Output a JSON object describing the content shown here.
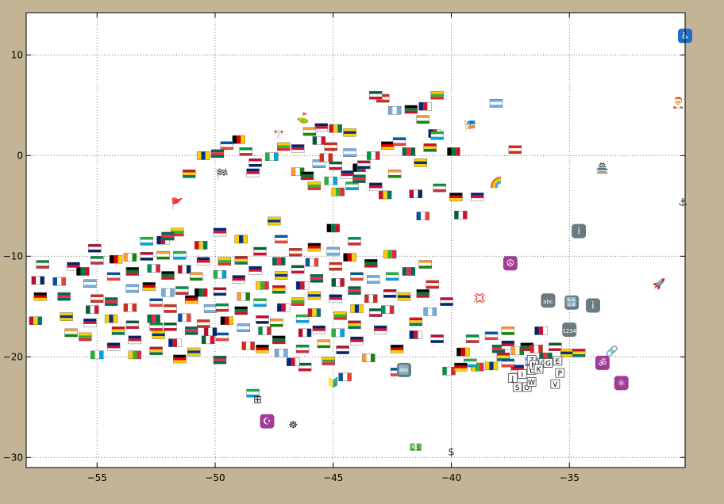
{
  "chart_data": {
    "type": "scatter",
    "title": "",
    "xlabel": "",
    "ylabel": "",
    "xlim": [
      -58,
      -30.1
    ],
    "ylim": [
      -31,
      14.2
    ],
    "xticks": [
      -55,
      -50,
      -45,
      -40,
      -35
    ],
    "yticks": [
      -30,
      -20,
      -10,
      0,
      10
    ],
    "xtick_labels": [
      "−55",
      "−50",
      "−45",
      "−40",
      "−35"
    ],
    "ytick_labels": [
      "−30",
      "−20",
      "−10",
      "0",
      "10"
    ],
    "grid": true,
    "legend": "none",
    "colors": {
      "background": "#c4b496",
      "plot_area": "#ffffff",
      "grid": "#555555",
      "keycap": "#6b7a80",
      "purple_symbol": "#a03c96",
      "blue_symbol": "#1e6fc8"
    },
    "flags": {
      "palettes": [
        [
          "#bf0a30",
          "#ffffff",
          "#002868"
        ],
        [
          "#009246",
          "#ffffff",
          "#ce2b37"
        ],
        [
          "#000000",
          "#dd0000",
          "#ffce00"
        ],
        [
          "#0055a4",
          "#ffffff",
          "#ef4135"
        ],
        [
          "#006a4e",
          "#f42a41",
          "#006a4e"
        ],
        [
          "#ffcd00",
          "#003580",
          "#ffcd00"
        ],
        [
          "#ce1126",
          "#fcd116",
          "#007a5e"
        ],
        [
          "#012169",
          "#c8102e",
          "#ffffff"
        ],
        [
          "#ff9933",
          "#ffffff",
          "#138808"
        ],
        [
          "#000000",
          "#007a3d",
          "#ce1126"
        ],
        [
          "#74acdf",
          "#ffffff",
          "#74acdf"
        ],
        [
          "#d52b1e",
          "#ffffff",
          "#d52b1e"
        ],
        [
          "#006233",
          "#ffffff",
          "#d21034"
        ],
        [
          "#00247d",
          "#cf142b",
          "#ffffff"
        ],
        [
          "#fecb00",
          "#34b233",
          "#ea2839"
        ],
        [
          "#1eb53a",
          "#ffffff",
          "#00a3dd"
        ]
      ],
      "points": [
        [
          -57.5,
          -12.4
        ],
        [
          -57.3,
          -10.8
        ],
        [
          -57.4,
          -14.0
        ],
        [
          -56.6,
          -12.5
        ],
        [
          -56.4,
          -14.0
        ],
        [
          -56.3,
          -16.0
        ],
        [
          -57.6,
          -16.4
        ],
        [
          -56.0,
          -11.0
        ],
        [
          -56.1,
          -17.6
        ],
        [
          -55.6,
          -11.5
        ],
        [
          -55.3,
          -12.7
        ],
        [
          -55.0,
          -14.2
        ],
        [
          -55.2,
          -15.3
        ],
        [
          -55.3,
          -16.6
        ],
        [
          -55.5,
          -18.0
        ],
        [
          -55.0,
          -19.8
        ],
        [
          -55.1,
          -9.2
        ],
        [
          -55.0,
          -10.4
        ],
        [
          -54.2,
          -10.3
        ],
        [
          -54.3,
          -12.0
        ],
        [
          -54.4,
          -14.5
        ],
        [
          -54.4,
          -16.2
        ],
        [
          -54.1,
          -17.4
        ],
        [
          -54.3,
          -19.0
        ],
        [
          -53.6,
          -10.1
        ],
        [
          -53.5,
          -11.5
        ],
        [
          -53.5,
          -13.2
        ],
        [
          -53.6,
          -15.1
        ],
        [
          -53.5,
          -16.8
        ],
        [
          -53.4,
          -18.3
        ],
        [
          -53.4,
          -19.8
        ],
        [
          -52.9,
          -8.5
        ],
        [
          -52.9,
          -10.0
        ],
        [
          -52.6,
          -11.2
        ],
        [
          -52.8,
          -13.0
        ],
        [
          -52.5,
          -14.6
        ],
        [
          -52.6,
          -16.2
        ],
        [
          -52.4,
          -17.8
        ],
        [
          -52.5,
          -19.4
        ],
        [
          -52.2,
          -8.4
        ],
        [
          -52.2,
          -9.9
        ],
        [
          -52.0,
          -11.9
        ],
        [
          -52.0,
          -13.6
        ],
        [
          -51.9,
          -15.2
        ],
        [
          -51.9,
          -17.0
        ],
        [
          -51.7,
          -18.6
        ],
        [
          -51.6,
          -7.6
        ],
        [
          -51.5,
          -9.9
        ],
        [
          -51.3,
          -11.3
        ],
        [
          -51.4,
          -13.4
        ],
        [
          -51.0,
          -14.3
        ],
        [
          -51.3,
          -16.1
        ],
        [
          -51.0,
          -17.4
        ],
        [
          -50.9,
          -19.5
        ],
        [
          -50.6,
          -8.9
        ],
        [
          -50.5,
          -10.5
        ],
        [
          -50.8,
          -12.0
        ],
        [
          -50.6,
          -13.6
        ],
        [
          -50.2,
          -15.2
        ],
        [
          -50.5,
          -16.7
        ],
        [
          -50.3,
          -18.3
        ],
        [
          -49.8,
          -7.6
        ],
        [
          -49.6,
          -10.5
        ],
        [
          -49.8,
          -11.8
        ],
        [
          -49.8,
          -13.5
        ],
        [
          -49.7,
          -15.1
        ],
        [
          -49.5,
          -16.4
        ],
        [
          -49.7,
          -18.0
        ],
        [
          -49.8,
          -20.3
        ],
        [
          -48.9,
          -8.3
        ],
        [
          -48.9,
          -10.4
        ],
        [
          -49.0,
          -12.3
        ],
        [
          -48.8,
          -14.0
        ],
        [
          -48.9,
          -15.4
        ],
        [
          -48.8,
          -17.1
        ],
        [
          -48.6,
          -18.9
        ],
        [
          -48.1,
          -9.5
        ],
        [
          -48.3,
          -11.4
        ],
        [
          -48.0,
          -12.9
        ],
        [
          -48.1,
          -14.6
        ],
        [
          -48.0,
          -16.3
        ],
        [
          -47.9,
          -17.4
        ],
        [
          -48.0,
          -19.2
        ],
        [
          -47.2,
          -8.3
        ],
        [
          -47.3,
          -10.5
        ],
        [
          -47.2,
          -11.9
        ],
        [
          -47.3,
          -13.3
        ],
        [
          -47.1,
          -15.1
        ],
        [
          -47.4,
          -16.6
        ],
        [
          -47.3,
          -18.3
        ],
        [
          -47.2,
          -19.6
        ],
        [
          -46.6,
          -9.6
        ],
        [
          -46.5,
          -11.3
        ],
        [
          -46.3,
          -12.9
        ],
        [
          -46.5,
          -14.5
        ],
        [
          -46.3,
          -16.2
        ],
        [
          -46.2,
          -17.6
        ],
        [
          -46.3,
          -19.2
        ],
        [
          -45.8,
          -9.1
        ],
        [
          -45.9,
          -10.6
        ],
        [
          -45.7,
          -12.2
        ],
        [
          -45.8,
          -13.9
        ],
        [
          -45.8,
          -15.6
        ],
        [
          -45.6,
          -17.3
        ],
        [
          -45.4,
          -18.7
        ],
        [
          -45.0,
          -7.2
        ],
        [
          -45.0,
          -9.5
        ],
        [
          -44.9,
          -11.0
        ],
        [
          -44.8,
          -12.6
        ],
        [
          -44.9,
          -14.2
        ],
        [
          -44.7,
          -15.9
        ],
        [
          -44.8,
          -17.6
        ],
        [
          -44.6,
          -19.3
        ],
        [
          -44.1,
          -8.5
        ],
        [
          -44.3,
          -10.1
        ],
        [
          -44.0,
          -12.0
        ],
        [
          -44.1,
          -13.4
        ],
        [
          -44.0,
          -15.2
        ],
        [
          -44.1,
          -16.8
        ],
        [
          -44.0,
          -18.4
        ],
        [
          -43.5,
          -20.1
        ],
        [
          -43.4,
          -10.7
        ],
        [
          -43.3,
          -12.3
        ],
        [
          -43.4,
          -14.2
        ],
        [
          -43.2,
          -15.6
        ],
        [
          -43.0,
          -17.3
        ],
        [
          -42.6,
          -9.8
        ],
        [
          -42.5,
          -12.0
        ],
        [
          -42.6,
          -13.7
        ],
        [
          -42.7,
          -15.3
        ],
        [
          -42.3,
          -19.2
        ],
        [
          -42.3,
          -21.5
        ],
        [
          -41.8,
          -11.5
        ],
        [
          -42.0,
          -14.0
        ],
        [
          -41.5,
          -16.5
        ],
        [
          -41.5,
          -17.8
        ],
        [
          -41.1,
          -10.8
        ],
        [
          -41.2,
          -13.7
        ],
        [
          -40.9,
          -15.5
        ],
        [
          -40.8,
          -12.8
        ],
        [
          -46.2,
          -21.0
        ],
        [
          -46.7,
          -20.5
        ],
        [
          -45.2,
          -20.4
        ],
        [
          -48.4,
          -23.6
        ],
        [
          -50.2,
          -17.5
        ],
        [
          -52.5,
          -17.0
        ],
        [
          -51.5,
          -20.2
        ],
        [
          -44.5,
          -22.0
        ],
        [
          -52.0,
          -8.0
        ],
        [
          -47.5,
          -6.5
        ],
        [
          -42.8,
          -3.9
        ],
        [
          -43.2,
          -3.1
        ],
        [
          -42.4,
          -1.8
        ],
        [
          -43.9,
          -1.2
        ],
        [
          -44.3,
          0.3
        ],
        [
          -45.1,
          0.9
        ],
        [
          -45.6,
          1.5
        ],
        [
          -46.5,
          0.7
        ],
        [
          -47.1,
          0.9
        ],
        [
          -47.6,
          -0.1
        ],
        [
          -48.3,
          -0.7
        ],
        [
          -48.7,
          0.4
        ],
        [
          -49.0,
          1.6
        ],
        [
          -49.5,
          1.0
        ],
        [
          -49.9,
          0.2
        ],
        [
          -50.5,
          0.0
        ],
        [
          -51.1,
          -1.8
        ],
        [
          -48.4,
          -1.7
        ],
        [
          -46.5,
          -1.6
        ],
        [
          -46.1,
          -2.0
        ],
        [
          -45.6,
          -0.8
        ],
        [
          -45.3,
          -0.2
        ],
        [
          -44.9,
          -1.0
        ],
        [
          -44.4,
          -1.9
        ],
        [
          -44.8,
          -3.6
        ],
        [
          -44.2,
          -3.0
        ],
        [
          -43.7,
          -0.9
        ],
        [
          -43.3,
          0.0
        ],
        [
          -42.7,
          1.0
        ],
        [
          -42.2,
          1.4
        ],
        [
          -41.8,
          0.4
        ],
        [
          -41.3,
          -0.7
        ],
        [
          -40.9,
          0.8
        ],
        [
          -40.7,
          2.2
        ],
        [
          -41.2,
          3.6
        ],
        [
          -41.7,
          4.6
        ],
        [
          -42.4,
          4.5
        ],
        [
          -42.9,
          5.7
        ],
        [
          -43.2,
          6.0
        ],
        [
          -41.1,
          4.9
        ],
        [
          -40.6,
          6.0
        ],
        [
          -40.6,
          2.0
        ],
        [
          -41.5,
          -3.8
        ],
        [
          -40.5,
          -3.2
        ],
        [
          -39.8,
          -4.1
        ],
        [
          -41.2,
          -6.0
        ],
        [
          -43.9,
          -2.3
        ],
        [
          -44.3,
          2.3
        ],
        [
          -44.9,
          2.7
        ],
        [
          -45.5,
          2.8
        ],
        [
          -46.0,
          2.4
        ],
        [
          -39.9,
          0.4
        ],
        [
          -38.1,
          5.2
        ],
        [
          -37.3,
          0.6
        ],
        [
          -39.6,
          -5.9
        ],
        [
          -38.9,
          -4.1
        ],
        [
          -45.8,
          -3.0
        ],
        [
          -45.1,
          -2.5
        ],
        [
          -40.2,
          -14.5
        ],
        [
          -39.1,
          -18.2
        ],
        [
          -39.5,
          -19.5
        ],
        [
          -38.3,
          -17.9
        ],
        [
          -38.0,
          -19.2
        ],
        [
          -38.3,
          -20.9
        ],
        [
          -37.8,
          -20.0
        ],
        [
          -37.6,
          -18.8
        ],
        [
          -37.2,
          -19.4
        ],
        [
          -36.8,
          -19.0
        ],
        [
          -36.6,
          -20.5
        ],
        [
          -36.4,
          -19.2
        ],
        [
          -35.6,
          -19.0
        ],
        [
          -37.2,
          -21.2
        ],
        [
          -38.9,
          -21.0
        ],
        [
          -39.2,
          -20.6
        ],
        [
          -40.6,
          -18.2
        ],
        [
          -40.1,
          -21.4
        ],
        [
          -39.6,
          -21.0
        ],
        [
          -37.6,
          -20.6
        ],
        [
          -36.0,
          -20.0
        ],
        [
          -35.1,
          -19.6
        ],
        [
          -34.6,
          -19.6
        ],
        [
          -36.2,
          -17.4
        ],
        [
          -37.6,
          -17.4
        ]
      ]
    },
    "symbols": [
      {
        "glyph": "🔡",
        "icon": "abc-keycap-icon",
        "x": -34.9,
        "y": -14.6
      },
      {
        "glyph": "i",
        "icon": "information-source-icon",
        "x": -34.0,
        "y": -14.9
      },
      {
        "glyph": "abc",
        "icon": "input-latin-lowercase-icon",
        "x": -35.9,
        "y": -14.4
      },
      {
        "glyph": "1234",
        "icon": "input-numbers-icon",
        "x": -35.0,
        "y": -17.3
      },
      {
        "glyph": "i",
        "icon": "information-icon",
        "x": -34.6,
        "y": -7.5
      },
      {
        "glyph": "☮",
        "icon": "peace-symbol-icon",
        "x": -37.5,
        "y": -10.7
      },
      {
        "glyph": "⚓",
        "icon": "anchor-icon",
        "x": -30.2,
        "y": -4.6
      },
      {
        "glyph": "🚀",
        "icon": "rocket-icon",
        "x": -31.2,
        "y": -12.7
      },
      {
        "glyph": "🎅",
        "icon": "santa-icon",
        "x": -30.4,
        "y": 5.3
      },
      {
        "glyph": "♿",
        "icon": "wheelchair-icon",
        "x": -30.1,
        "y": 11.9
      },
      {
        "glyph": "🏯",
        "icon": "castle-icon",
        "x": -33.6,
        "y": -1.2
      },
      {
        "glyph": "🌈",
        "icon": "rainbow-icon",
        "x": -38.1,
        "y": -2.6
      },
      {
        "glyph": "💢",
        "icon": "anger-symbol-icon",
        "x": -38.8,
        "y": -14.1
      },
      {
        "glyph": "🔗",
        "icon": "link-icon",
        "x": -33.2,
        "y": -19.4
      },
      {
        "glyph": "ॐ",
        "icon": "om-symbol-icon",
        "x": -33.6,
        "y": -20.6
      },
      {
        "glyph": "⚛",
        "icon": "atom-symbol-icon",
        "x": -32.8,
        "y": -22.6
      },
      {
        "glyph": "☪",
        "icon": "star-and-crescent-icon",
        "x": -47.8,
        "y": -26.4
      },
      {
        "glyph": "⊞",
        "icon": "squared-plus-icon",
        "x": -48.2,
        "y": -24.2
      },
      {
        "glyph": "☸",
        "icon": "wheel-of-dharma-icon",
        "x": -46.7,
        "y": -26.7
      },
      {
        "glyph": "$",
        "icon": "heavy-dollar-sign-icon",
        "x": -40.0,
        "y": -29.4
      },
      {
        "glyph": "💵",
        "icon": "money-with-wings-icon",
        "x": -41.5,
        "y": -28.9
      },
      {
        "glyph": "🔰",
        "icon": "japanese-beginner-symbol-icon",
        "x": -45.0,
        "y": -22.5
      },
      {
        "glyph": "⛳",
        "icon": "flag-in-hole-icon",
        "x": -46.3,
        "y": 3.8
      },
      {
        "glyph": "🎌",
        "icon": "crossed-flags-icon",
        "x": -47.3,
        "y": 2.2
      },
      {
        "glyph": "🏁",
        "icon": "chequered-flag-icon",
        "x": -49.7,
        "y": -1.8
      },
      {
        "glyph": "🚩",
        "icon": "triangular-flag-icon",
        "x": -51.6,
        "y": -4.7
      },
      {
        "glyph": "🎏",
        "icon": "carp-streamer-icon",
        "x": -39.2,
        "y": 3.0
      },
      {
        "glyph": "🔤",
        "icon": "input-symbol-for-latin-letters-icon",
        "x": -42.0,
        "y": -21.3
      }
    ],
    "letter_tiles": [
      {
        "letter": "J",
        "x": -37.4,
        "y": -22.1
      },
      {
        "letter": "I",
        "x": -37.0,
        "y": -21.7
      },
      {
        "letter": "L",
        "x": -36.6,
        "y": -21.3
      },
      {
        "letter": "Z",
        "x": -36.6,
        "y": -20.3
      },
      {
        "letter": "N",
        "x": -36.5,
        "y": -20.8
      },
      {
        "letter": "Q",
        "x": -36.1,
        "y": -20.6
      },
      {
        "letter": "G",
        "x": -35.9,
        "y": -20.6
      },
      {
        "letter": "K",
        "x": -36.3,
        "y": -21.2
      },
      {
        "letter": "S",
        "x": -37.2,
        "y": -23.0
      },
      {
        "letter": "O",
        "x": -36.8,
        "y": -23.0
      },
      {
        "letter": "W",
        "x": -36.6,
        "y": -22.5
      },
      {
        "letter": "E",
        "x": -35.5,
        "y": -20.4
      },
      {
        "letter": "P",
        "x": -35.4,
        "y": -21.6
      },
      {
        "letter": "V",
        "x": -35.6,
        "y": -22.7
      }
    ]
  }
}
